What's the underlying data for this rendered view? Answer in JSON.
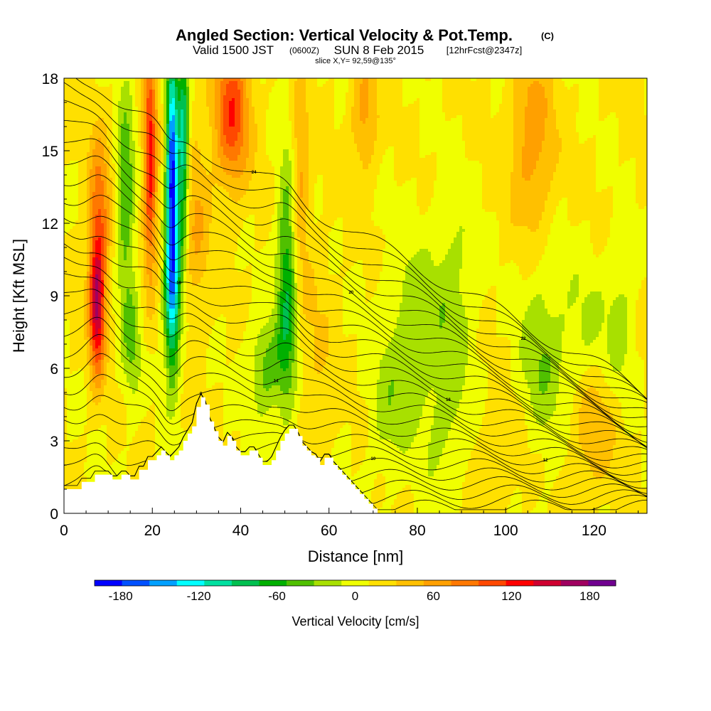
{
  "chart_data": {
    "type": "heatmap",
    "title": "Angled Section: Vertical Velocity & Pot.Temp.",
    "title_unit_tag": "(C)",
    "subtitle_parts": {
      "valid": "Valid 1500 JST",
      "zulu": "(0600Z)",
      "date": "SUN 8 Feb 2015",
      "fcst": "[12hrFcst@2347z]"
    },
    "slice_label": "slice X,Y= 92,59@135°",
    "xlabel": "Distance [nm]",
    "ylabel": "Height [Kft MSL]",
    "xlim": [
      0,
      132
    ],
    "ylim": [
      0,
      18
    ],
    "x_ticks": [
      0,
      20,
      40,
      60,
      80,
      100,
      120
    ],
    "y_ticks": [
      0,
      3,
      6,
      9,
      12,
      15,
      18
    ],
    "colorbar": {
      "label": "Vertical Velocity [cm/s]",
      "range": [
        -200,
        200
      ],
      "tick_values": [
        -180,
        -120,
        -60,
        0,
        60,
        120,
        180
      ],
      "tick_labels": [
        "-180",
        "-120",
        "-60",
        "0",
        "60",
        "120",
        "180"
      ],
      "colors": [
        "#0000ff",
        "#0050ff",
        "#00a0ff",
        "#00ffff",
        "#00e0a0",
        "#00c050",
        "#00b000",
        "#50c000",
        "#a8e000",
        "#f0ff00",
        "#ffe000",
        "#ffc000",
        "#ffa000",
        "#ff7800",
        "#ff4800",
        "#ff0000",
        "#d00030",
        "#a00060",
        "#700090"
      ]
    },
    "terrain_kft": {
      "x": [
        0,
        1,
        2,
        3,
        4,
        5,
        6,
        7,
        8,
        9,
        10,
        11,
        12,
        13,
        14,
        15,
        16,
        17,
        18,
        19,
        20,
        21,
        22,
        23,
        24,
        25,
        26,
        27,
        28,
        29,
        30,
        31,
        32,
        33,
        34,
        35,
        36,
        37,
        38,
        39,
        40,
        41,
        42,
        43,
        44,
        45,
        46,
        47,
        48,
        49,
        50,
        51,
        52,
        53,
        54,
        55,
        56,
        57,
        58,
        59,
        60,
        61,
        62,
        63,
        64,
        65,
        66,
        67,
        68,
        69,
        70,
        71,
        72
      ],
      "h": [
        1.0,
        1.0,
        1.0,
        1.0,
        1.3,
        1.3,
        1.3,
        1.6,
        1.6,
        1.6,
        1.6,
        1.4,
        1.4,
        1.6,
        1.6,
        1.4,
        1.4,
        1.8,
        1.8,
        2.2,
        2.2,
        2.4,
        2.6,
        2.4,
        2.2,
        2.4,
        2.6,
        3.0,
        3.3,
        3.6,
        4.4,
        4.8,
        4.5,
        3.8,
        3.4,
        3.0,
        2.8,
        3.2,
        3.0,
        2.6,
        2.4,
        2.4,
        2.6,
        2.6,
        2.3,
        2.0,
        2.0,
        2.2,
        2.6,
        3.0,
        3.3,
        3.5,
        3.5,
        3.2,
        2.8,
        2.6,
        2.4,
        2.3,
        2.0,
        2.3,
        2.3,
        2.0,
        1.8,
        1.6,
        1.4,
        1.2,
        1.0,
        0.8,
        0.6,
        0.4,
        0.2,
        0.0,
        0.0
      ]
    },
    "vertical_velocity_cells": [
      {
        "x": 7.5,
        "y": 8.5,
        "sx": 1.8,
        "sy": 2.8,
        "v": 140
      },
      {
        "x": 8.0,
        "y": 12.5,
        "sx": 2.5,
        "sy": 3.5,
        "v": 70
      },
      {
        "x": 14.0,
        "y": 13.0,
        "sx": 2.0,
        "sy": 5.0,
        "v": -60
      },
      {
        "x": 15.5,
        "y": 7.0,
        "sx": 2.0,
        "sy": 2.5,
        "v": -40
      },
      {
        "x": 19.5,
        "y": 14.5,
        "sx": 1.5,
        "sy": 4.5,
        "v": 120
      },
      {
        "x": 24.5,
        "y": 14.5,
        "sx": 1.3,
        "sy": 4.5,
        "v": -190
      },
      {
        "x": 24.5,
        "y": 9.0,
        "sx": 1.8,
        "sy": 3.5,
        "v": -130
      },
      {
        "x": 27.0,
        "y": 15.0,
        "sx": 1.2,
        "sy": 4.0,
        "v": -120
      },
      {
        "x": 38.0,
        "y": 16.5,
        "sx": 4.0,
        "sy": 3.0,
        "v": 100
      },
      {
        "x": 30.0,
        "y": 12.0,
        "sx": 3.0,
        "sy": 4.0,
        "v": 40
      },
      {
        "x": 50.5,
        "y": 9.5,
        "sx": 2.2,
        "sy": 5.0,
        "v": -85
      },
      {
        "x": 46.0,
        "y": 6.0,
        "sx": 4.0,
        "sy": 2.0,
        "v": -55
      },
      {
        "x": 53.5,
        "y": 14.0,
        "sx": 2.0,
        "sy": 4.0,
        "v": 50
      },
      {
        "x": 57.0,
        "y": 7.0,
        "sx": 4.0,
        "sy": 4.0,
        "v": 20
      },
      {
        "x": 68.0,
        "y": 16.5,
        "sx": 3.0,
        "sy": 2.5,
        "v": 50
      },
      {
        "x": 78.0,
        "y": 7.5,
        "sx": 6.0,
        "sy": 4.0,
        "v": -35
      },
      {
        "x": 73.0,
        "y": 4.0,
        "sx": 4.0,
        "sy": 2.5,
        "v": -25
      },
      {
        "x": 88.0,
        "y": 9.0,
        "sx": 5.0,
        "sy": 4.0,
        "v": -35
      },
      {
        "x": 86.0,
        "y": 3.5,
        "sx": 5.0,
        "sy": 3.0,
        "v": -25
      },
      {
        "x": 108.0,
        "y": 6.5,
        "sx": 5.0,
        "sy": 4.0,
        "v": -40
      },
      {
        "x": 118.0,
        "y": 7.5,
        "sx": 6.0,
        "sy": 3.0,
        "v": -25
      },
      {
        "x": 106.0,
        "y": 15.5,
        "sx": 5.0,
        "sy": 4.0,
        "v": 55
      },
      {
        "x": 120.0,
        "y": 3.5,
        "sx": 5.0,
        "sy": 2.5,
        "v": 40
      },
      {
        "x": 126.0,
        "y": 8.0,
        "sx": 3.0,
        "sy": 3.0,
        "v": -30
      },
      {
        "x": 100.0,
        "y": 2.5,
        "sx": 6.0,
        "sy": 2.0,
        "v": 20
      }
    ],
    "pot_temp_contour_labels": [
      "26",
      "24",
      "22",
      "20",
      "18",
      "16",
      "14",
      "12",
      "10",
      "8"
    ]
  }
}
